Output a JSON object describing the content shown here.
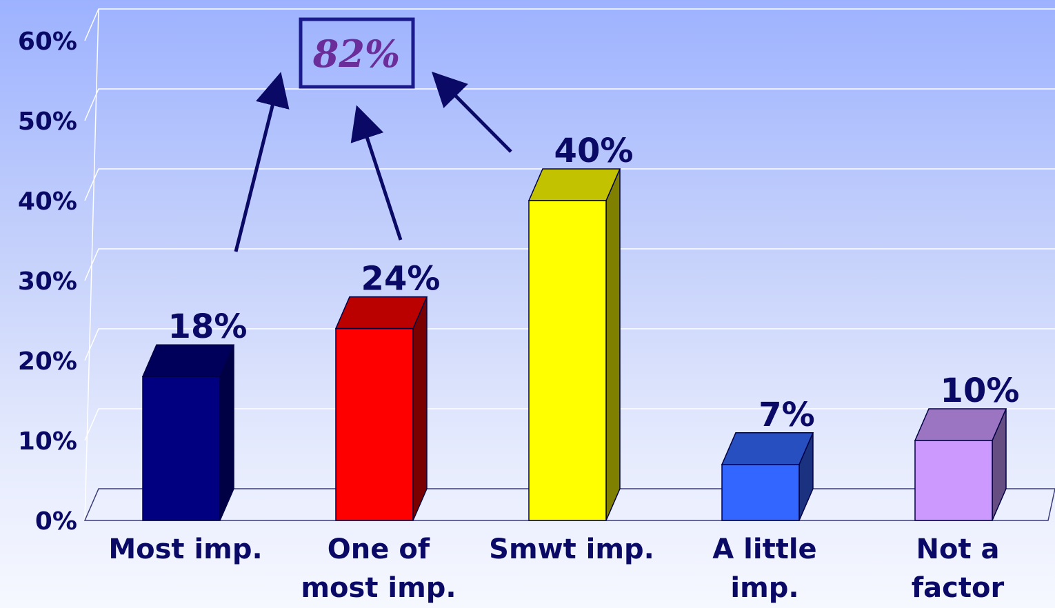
{
  "chart_data": {
    "type": "bar",
    "categories": [
      [
        "Most imp."
      ],
      [
        "One of",
        "most imp."
      ],
      [
        "Smwt imp."
      ],
      [
        "A little",
        "imp."
      ],
      [
        "Not a",
        "factor"
      ]
    ],
    "values": [
      18,
      24,
      40,
      7,
      10
    ],
    "data_labels": [
      "18%",
      "24%",
      "40%",
      "7%",
      "10%"
    ],
    "ylim": [
      0,
      60
    ],
    "yticks": [
      0,
      10,
      20,
      30,
      40,
      50,
      60
    ],
    "ytick_labels": [
      "0%",
      "10%",
      "20%",
      "30%",
      "40%",
      "50%",
      "60%"
    ],
    "grid": true,
    "style": "3d-column",
    "colors": [
      {
        "front": "#000080",
        "top": "#00005a",
        "side": "#000045"
      },
      {
        "front": "#ff0000",
        "top": "#bb0000",
        "side": "#7a0000"
      },
      {
        "front": "#ffff00",
        "top": "#c2c200",
        "side": "#808000"
      },
      {
        "front": "#3366ff",
        "top": "#284fc0",
        "side": "#1a3280"
      },
      {
        "front": "#cc99ff",
        "top": "#9b74c2",
        "side": "#664e82"
      }
    ],
    "annotation": {
      "text": "82%",
      "note_target_categories": [
        "Most imp.",
        "One of most imp.",
        "Smwt imp."
      ]
    }
  }
}
